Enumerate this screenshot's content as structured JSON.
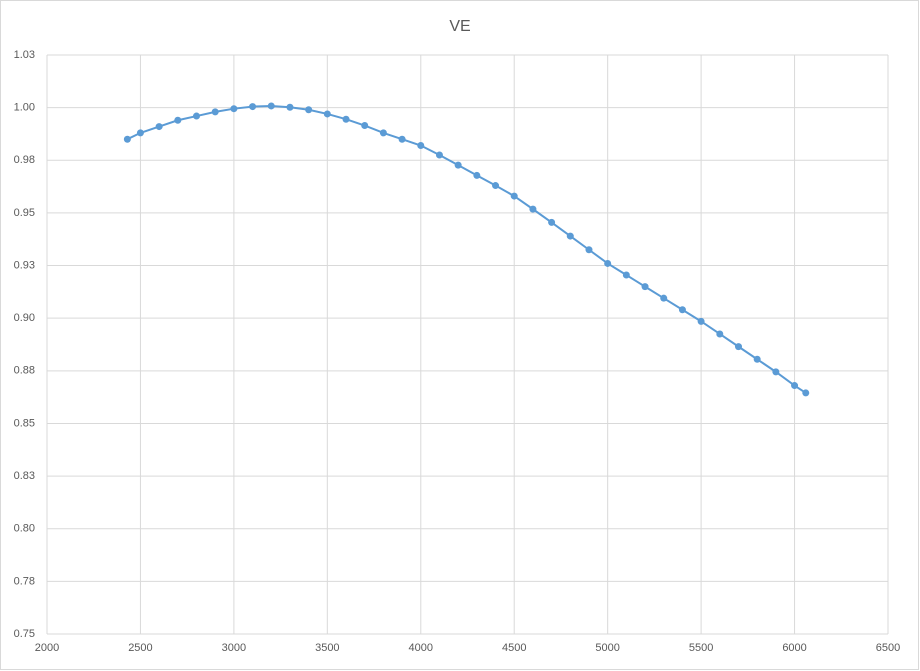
{
  "chart_data": {
    "type": "line",
    "title": "VE",
    "x": [
      2430,
      2500,
      2600,
      2700,
      2800,
      2900,
      3000,
      3100,
      3200,
      3300,
      3400,
      3500,
      3600,
      3700,
      3800,
      3900,
      4000,
      4100,
      4200,
      4300,
      4400,
      4500,
      4600,
      4700,
      4800,
      4900,
      5000,
      5100,
      5200,
      5300,
      5400,
      5500,
      5600,
      5700,
      5800,
      5900,
      6000,
      6060
    ],
    "values": [
      0.985,
      0.988,
      0.991,
      0.994,
      0.996,
      0.998,
      0.9995,
      1.0005,
      1.0008,
      1.0002,
      0.999,
      0.997,
      0.9945,
      0.9915,
      0.988,
      0.985,
      0.982,
      0.9775,
      0.9727,
      0.9678,
      0.963,
      0.958,
      0.9518,
      0.9455,
      0.939,
      0.9325,
      0.926,
      0.9205,
      0.915,
      0.9095,
      0.904,
      0.8985,
      0.8925,
      0.8865,
      0.8805,
      0.8745,
      0.868,
      0.8645
    ],
    "color": "#5b9bd5",
    "markers": true,
    "xlim": [
      2000,
      6500
    ],
    "xticks": [
      2000,
      2500,
      3000,
      3500,
      4000,
      4500,
      5000,
      5500,
      6000,
      6500
    ],
    "ylim": [
      0.75,
      1.025
    ],
    "yticks": [
      0.75,
      {
        "value": 0.775,
        "label": "0.78"
      },
      {
        "value": 0.8,
        "label": "0.80"
      },
      {
        "value": 0.825,
        "label": "0.83"
      },
      0.85,
      {
        "value": 0.875,
        "label": "0.88"
      },
      {
        "value": 0.9,
        "label": "0.90"
      },
      {
        "value": 0.925,
        "label": "0.93"
      },
      0.95,
      {
        "value": 0.975,
        "label": "0.98"
      },
      {
        "value": 1.0,
        "label": "1.00"
      },
      {
        "value": 1.025,
        "label": "1.03"
      }
    ],
    "grid": true
  }
}
